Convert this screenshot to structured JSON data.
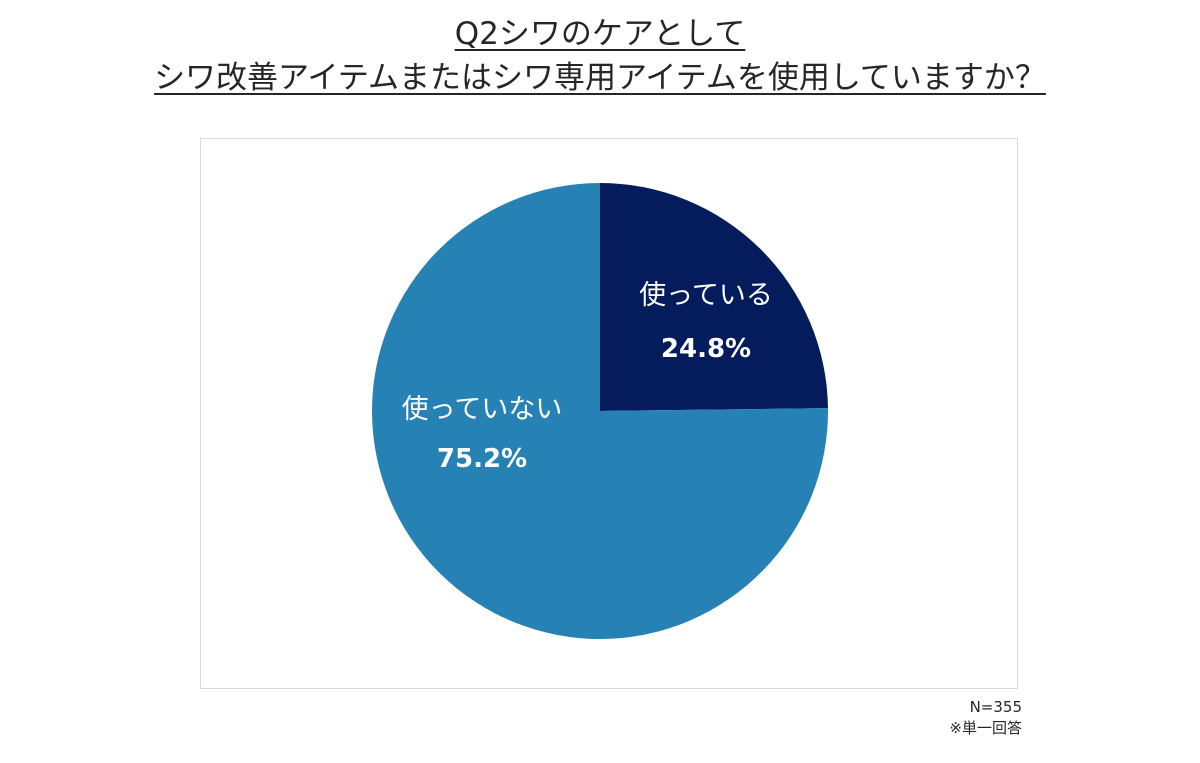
{
  "title": {
    "line1": "Q2シワのケアとして",
    "line2": "シワ改善アイテムまたはシワ専用アイテムを使用していますか？"
  },
  "chart_data": {
    "type": "pie",
    "slices": [
      {
        "label": "使っている",
        "value": 24.8,
        "value_label": "24.8%",
        "color": "#051c5c"
      },
      {
        "label": "使っていない",
        "value": 75.2,
        "value_label": "75.2%",
        "color": "#2681b4"
      }
    ],
    "start_angle": "12 o'clock",
    "direction": "clockwise",
    "label_color": "#ffffff",
    "legend": "none"
  },
  "footer": {
    "sample_size": "N=355",
    "note": "※単一回答"
  }
}
